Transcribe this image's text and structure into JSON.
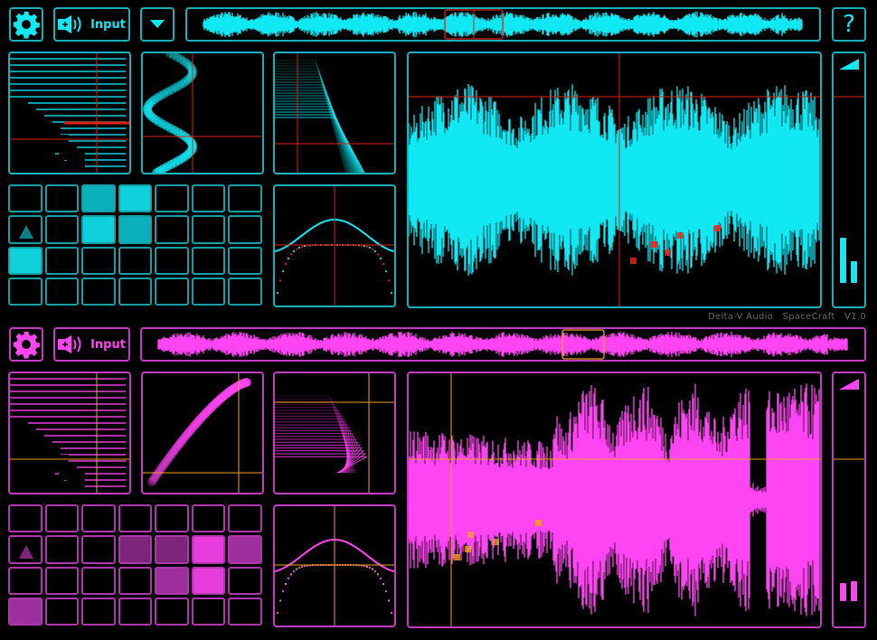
{
  "app": {
    "vendor": "Delta-V Audio",
    "product": "SpaceCraft",
    "version": "V1.0"
  },
  "colors": {
    "top_accent": "#10e8f4",
    "bottom_accent": "#ff44f4",
    "top_marker": "#e02010",
    "bottom_marker": "#f0a020"
  },
  "sections": [
    {
      "id": "top",
      "theme": "cy",
      "settings_icon": "gear-icon",
      "input_label": "Input",
      "input_icon": "speaker-plus-icon",
      "has_dropdown": true,
      "dropdown_icon": "triangle-down-icon",
      "has_help": true,
      "help_label": "?",
      "grid": {
        "cols": 7,
        "rows": 4,
        "cells": [
          [
            0,
            0,
            2,
            3,
            0,
            0,
            0
          ],
          [
            4,
            0,
            3,
            2,
            0,
            0,
            0
          ],
          [
            3,
            0,
            0,
            0,
            0,
            0,
            0
          ],
          [
            0,
            0,
            0,
            0,
            0,
            0,
            0
          ]
        ]
      },
      "meter_bars": 2
    },
    {
      "id": "bottom",
      "theme": "pk",
      "settings_icon": "gear-icon",
      "input_label": "Input",
      "input_icon": "speaker-plus-icon",
      "has_dropdown": false,
      "has_help": false,
      "grid": {
        "cols": 7,
        "rows": 4,
        "cells": [
          [
            0,
            0,
            0,
            0,
            0,
            0,
            0
          ],
          [
            4,
            0,
            0,
            1,
            1,
            3,
            2
          ],
          [
            0,
            0,
            0,
            0,
            2,
            3,
            0
          ],
          [
            2,
            0,
            0,
            0,
            0,
            0,
            0
          ]
        ]
      },
      "meter_bars": 2
    }
  ]
}
